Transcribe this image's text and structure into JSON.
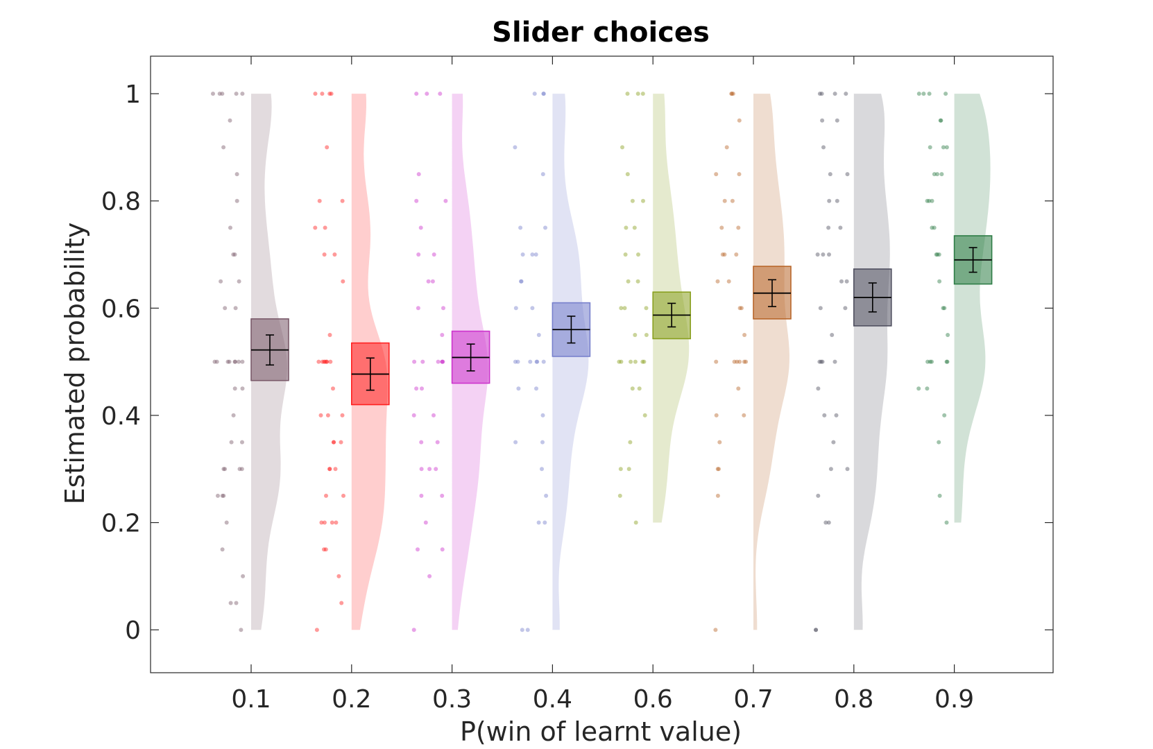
{
  "chart_data": {
    "type": "raincloud",
    "title": "Slider choices",
    "xlabel": "P(win of learnt value)",
    "ylabel": "Estimated probability",
    "ylim": [
      -0.08,
      1.07
    ],
    "yticks": [
      0,
      0.2,
      0.4,
      0.6,
      0.8,
      1
    ],
    "ytick_labels": [
      "0",
      "0.2",
      "0.4",
      "0.6",
      "0.8",
      "1"
    ],
    "categories": [
      "0.1",
      "0.2",
      "0.3",
      "0.4",
      "0.6",
      "0.7",
      "0.8",
      "0.9"
    ],
    "grid": false,
    "groups": [
      {
        "label": "0.1",
        "color": "#7a5a6a",
        "mean": 0.522,
        "sem": 0.028,
        "box": [
          0.465,
          0.58
        ],
        "points": [
          1,
          1,
          1,
          1,
          1,
          0.95,
          0.9,
          0.85,
          0.8,
          0.75,
          0.7,
          0.7,
          0.65,
          0.65,
          0.6,
          0.6,
          0.5,
          0.5,
          0.5,
          0.5,
          0.5,
          0.5,
          0.5,
          0.5,
          0.45,
          0.45,
          0.4,
          0.35,
          0.35,
          0.3,
          0.3,
          0.3,
          0.3,
          0.25,
          0.25,
          0.25,
          0.2,
          0.15,
          0.1,
          0.05,
          0.05,
          0
        ]
      },
      {
        "label": "0.2",
        "color": "#ff2020",
        "mean": 0.477,
        "sem": 0.03,
        "box": [
          0.42,
          0.535
        ],
        "points": [
          1,
          1,
          1,
          1,
          0.9,
          0.8,
          0.8,
          0.75,
          0.75,
          0.7,
          0.7,
          0.65,
          0.55,
          0.5,
          0.5,
          0.5,
          0.5,
          0.5,
          0.5,
          0.5,
          0.45,
          0.4,
          0.4,
          0.4,
          0.35,
          0.35,
          0.35,
          0.3,
          0.3,
          0.3,
          0.25,
          0.25,
          0.2,
          0.2,
          0.2,
          0.2,
          0.15,
          0.15,
          0.1,
          0.05,
          0
        ]
      },
      {
        "label": "0.3",
        "color": "#cc33cc",
        "mean": 0.508,
        "sem": 0.025,
        "box": [
          0.46,
          0.557
        ],
        "points": [
          1,
          1,
          1,
          0.85,
          0.8,
          0.8,
          0.75,
          0.7,
          0.7,
          0.65,
          0.65,
          0.6,
          0.6,
          0.55,
          0.5,
          0.5,
          0.5,
          0.5,
          0.5,
          0.5,
          0.45,
          0.45,
          0.4,
          0.4,
          0.35,
          0.35,
          0.3,
          0.3,
          0.3,
          0.25,
          0.25,
          0.2,
          0.15,
          0.15,
          0.1,
          0
        ]
      },
      {
        "label": "0.4",
        "color": "#7780cc",
        "mean": 0.56,
        "sem": 0.025,
        "box": [
          0.51,
          0.61
        ],
        "points": [
          1,
          1,
          1,
          0.9,
          0.85,
          0.75,
          0.75,
          0.7,
          0.7,
          0.7,
          0.65,
          0.65,
          0.6,
          0.6,
          0.55,
          0.5,
          0.5,
          0.5,
          0.5,
          0.5,
          0.5,
          0.45,
          0.45,
          0.4,
          0.35,
          0.35,
          0.3,
          0.25,
          0.2,
          0.2,
          0,
          0
        ]
      },
      {
        "label": "0.6",
        "color": "#8aa020",
        "mean": 0.587,
        "sem": 0.022,
        "box": [
          0.543,
          0.63
        ],
        "points": [
          1,
          1,
          1,
          0.9,
          0.85,
          0.8,
          0.8,
          0.75,
          0.75,
          0.7,
          0.7,
          0.65,
          0.65,
          0.6,
          0.6,
          0.6,
          0.55,
          0.55,
          0.5,
          0.5,
          0.5,
          0.5,
          0.5,
          0.5,
          0.45,
          0.45,
          0.4,
          0.35,
          0.3,
          0.3,
          0.25,
          0.2
        ]
      },
      {
        "label": "0.7",
        "color": "#b8662a",
        "mean": 0.628,
        "sem": 0.025,
        "box": [
          0.58,
          0.678
        ],
        "points": [
          1,
          1,
          1,
          0.95,
          0.9,
          0.85,
          0.85,
          0.8,
          0.8,
          0.75,
          0.75,
          0.7,
          0.7,
          0.7,
          0.65,
          0.65,
          0.6,
          0.6,
          0.55,
          0.5,
          0.5,
          0.5,
          0.5,
          0.5,
          0.5,
          0.45,
          0.4,
          0.4,
          0.35,
          0.3,
          0.3,
          0.25,
          0
        ]
      },
      {
        "label": "0.8",
        "color": "#505060",
        "mean": 0.62,
        "sem": 0.027,
        "box": [
          0.567,
          0.673
        ],
        "points": [
          1,
          1,
          1,
          1,
          0.95,
          0.95,
          0.9,
          0.85,
          0.85,
          0.8,
          0.8,
          0.75,
          0.75,
          0.7,
          0.7,
          0.7,
          0.65,
          0.65,
          0.6,
          0.6,
          0.55,
          0.5,
          0.5,
          0.5,
          0.5,
          0.45,
          0.4,
          0.4,
          0.35,
          0.3,
          0.3,
          0.25,
          0.2,
          0.2,
          0,
          0
        ]
      },
      {
        "label": "0.9",
        "color": "#2e7d46",
        "mean": 0.69,
        "sem": 0.023,
        "box": [
          0.645,
          0.735
        ],
        "points": [
          1,
          1,
          1,
          1,
          0.95,
          0.95,
          0.9,
          0.9,
          0.9,
          0.85,
          0.85,
          0.85,
          0.8,
          0.8,
          0.8,
          0.75,
          0.75,
          0.7,
          0.7,
          0.7,
          0.65,
          0.6,
          0.6,
          0.55,
          0.5,
          0.5,
          0.5,
          0.5,
          0.5,
          0.45,
          0.45,
          0.4,
          0.35,
          0.25,
          0.2
        ]
      }
    ]
  }
}
